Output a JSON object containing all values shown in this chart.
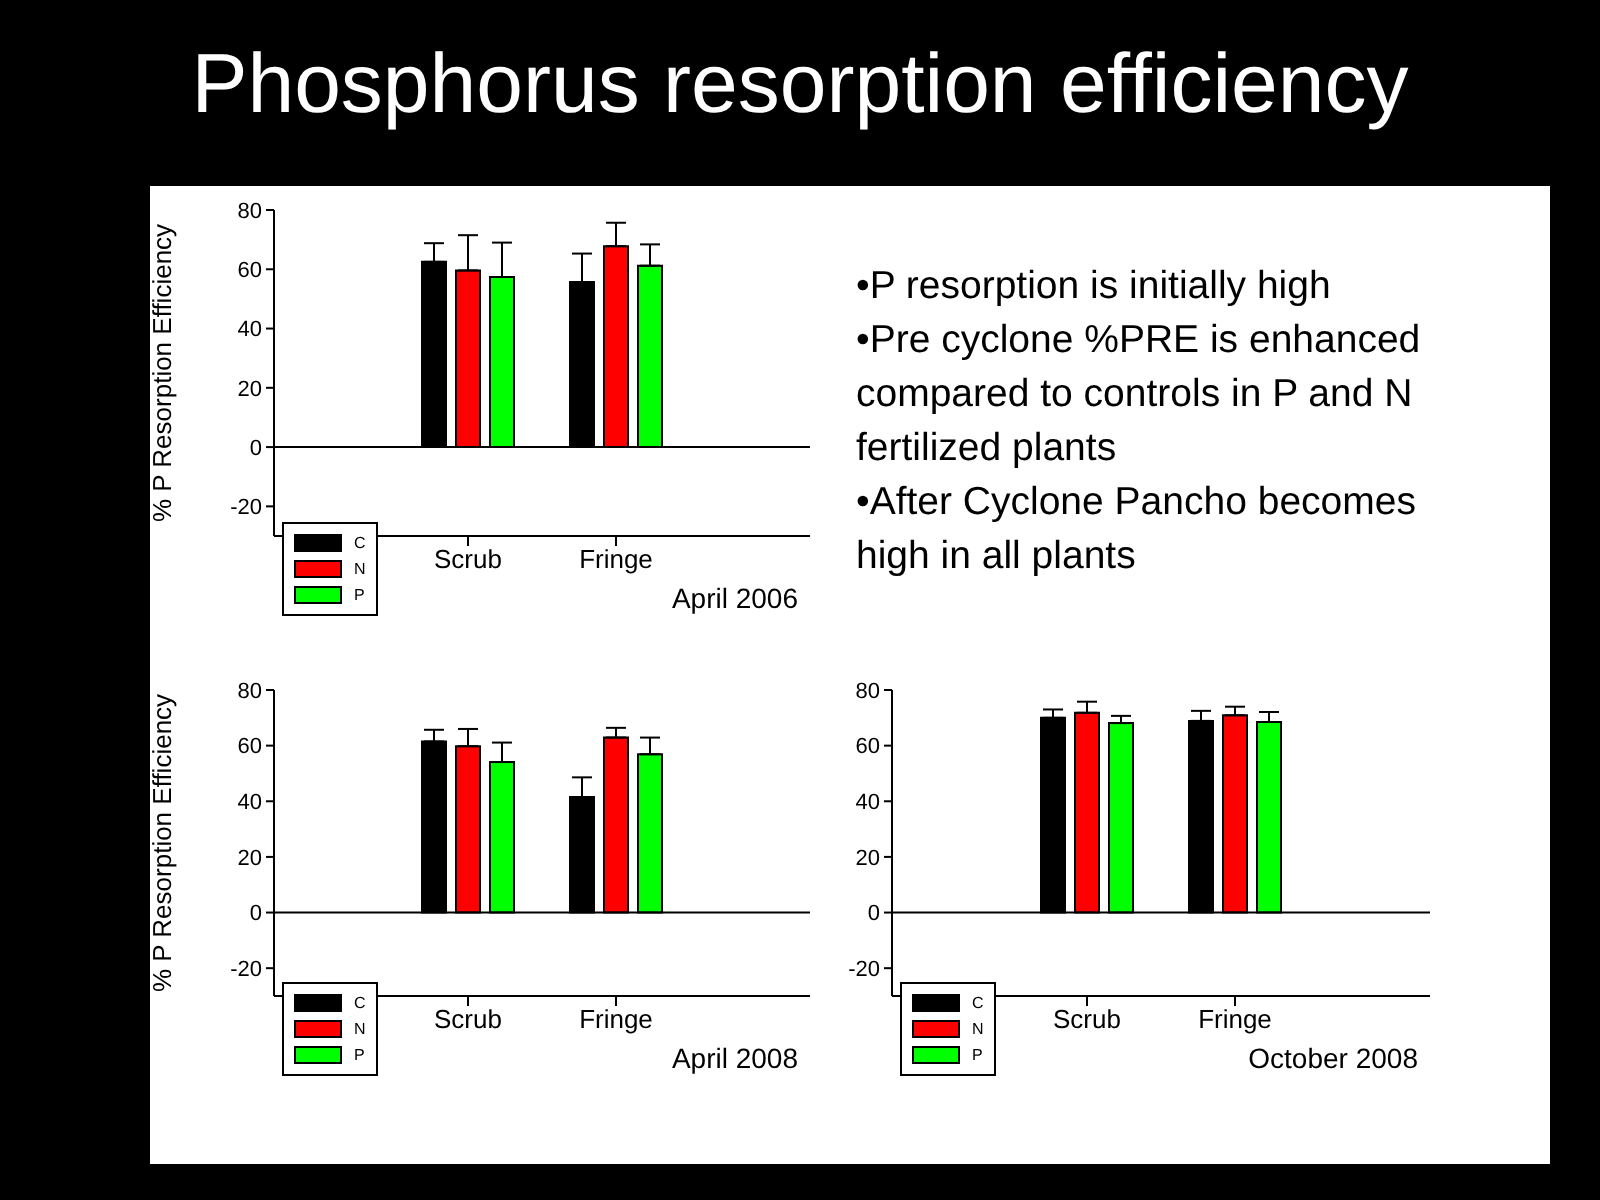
{
  "chart_data": [
    {
      "type": "bar",
      "title": "Phosphorus resorption efficiency",
      "ylabel": "% P Resorption Efficiency",
      "categories": [
        "Scrub",
        "Fringe"
      ],
      "ylim": [
        -30,
        80
      ],
      "yticks": [
        -20,
        0,
        20,
        40,
        60,
        80
      ],
      "legend": "bottom left",
      "annotations": [
        "April 2006"
      ],
      "ref_lines": [
        {
          "axis": "y",
          "value": 0
        }
      ],
      "series": [
        {
          "name": "C",
          "color": "#000000",
          "values": [
            62.5,
            55.7
          ],
          "errors": [
            [
              62.5,
              68.8
            ],
            [
              55.7,
              65.3
            ]
          ]
        },
        {
          "name": "N",
          "color": "#ff0000",
          "values": [
            59.6,
            67.8
          ],
          "errors": [
            [
              59.6,
              71.5
            ],
            [
              67.8,
              75.7
            ]
          ]
        },
        {
          "name": "P",
          "color": "#00ff00",
          "values": [
            57.4,
            61.2
          ],
          "errors": [
            [
              57.4,
              69
            ],
            [
              61.2,
              68.4
            ]
          ]
        }
      ]
    },
    {
      "type": "other",
      "annotations": [
        "•P resorption is initially high",
        "•Pre cyclone %PRE is enhanced compared to controls in P and N fertilized plants",
        "•After Cyclone Pancho becomes high in all plants"
      ]
    },
    {
      "type": "bar",
      "ylabel": "% P Resorption Efficiency",
      "categories": [
        "Scrub",
        "Fringe"
      ],
      "ylim": [
        -30,
        80
      ],
      "yticks": [
        -20,
        0,
        20,
        40,
        60,
        80
      ],
      "legend": "bottom left",
      "annotations": [
        "April 2008"
      ],
      "ref_lines": [
        {
          "axis": "y",
          "value": 0
        }
      ],
      "series": [
        {
          "name": "C",
          "color": "#000000",
          "values": [
            61.5,
            41.5
          ],
          "errors": [
            [
              61.5,
              65.7
            ],
            [
              41.5,
              48.6
            ]
          ]
        },
        {
          "name": "N",
          "color": "#ff0000",
          "values": [
            59.8,
            62.9
          ],
          "errors": [
            [
              59.8,
              66
            ],
            [
              62.9,
              66.4
            ]
          ]
        },
        {
          "name": "P",
          "color": "#00ff00",
          "values": [
            54.1,
            56.9
          ],
          "errors": [
            [
              54.1,
              61.1
            ],
            [
              56.9,
              62.9
            ]
          ]
        }
      ]
    },
    {
      "type": "bar",
      "categories": [
        "Scrub",
        "Fringe"
      ],
      "ylim": [
        -30,
        80
      ],
      "yticks": [
        -20,
        0,
        20,
        40,
        60,
        80
      ],
      "legend": "bottom left",
      "annotations": [
        "October 2008"
      ],
      "ref_lines": [
        {
          "axis": "y",
          "value": 0
        }
      ],
      "series": [
        {
          "name": "C",
          "color": "#000000",
          "values": [
            70,
            68.9
          ],
          "errors": [
            [
              70,
              73
            ],
            [
              68.9,
              72.5
            ]
          ]
        },
        {
          "name": "N",
          "color": "#ff0000",
          "values": [
            71.8,
            70.9
          ],
          "errors": [
            [
              71.8,
              75.8
            ],
            [
              70.9,
              74
            ]
          ]
        },
        {
          "name": "P",
          "color": "#00ff00",
          "values": [
            68.1,
            68.5
          ],
          "errors": [
            [
              68.1,
              70.7
            ],
            [
              68.5,
              72.1
            ]
          ]
        }
      ]
    }
  ]
}
